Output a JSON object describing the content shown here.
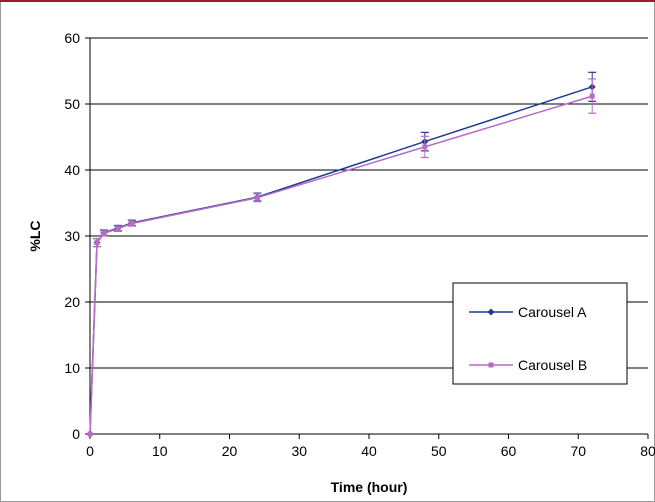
{
  "chart_data": {
    "type": "line",
    "title": "",
    "xlabel": "Time (hour)",
    "ylabel": "%LC",
    "xlim": [
      0,
      80
    ],
    "ylim": [
      0,
      60
    ],
    "x_ticks": [
      "0",
      "10",
      "20",
      "30",
      "40",
      "50",
      "60",
      "70",
      "80"
    ],
    "y_ticks": [
      "0",
      "10",
      "20",
      "30",
      "40",
      "50",
      "60"
    ],
    "grid": "horizontal",
    "legend_position": "bottom-right",
    "series": [
      {
        "name": "Carousel A",
        "color": "#1f3a93",
        "marker": "diamond",
        "points": [
          {
            "x": 0,
            "y": 0,
            "err": 0
          },
          {
            "x": 1,
            "y": 29.0,
            "err": 0.6
          },
          {
            "x": 2,
            "y": 30.5,
            "err": 0.4
          },
          {
            "x": 4,
            "y": 31.2,
            "err": 0.4
          },
          {
            "x": 6,
            "y": 32.0,
            "err": 0.4
          },
          {
            "x": 24,
            "y": 35.9,
            "err": 0.6
          },
          {
            "x": 48,
            "y": 44.3,
            "err": 1.4
          },
          {
            "x": 72,
            "y": 52.6,
            "err": 2.2
          }
        ]
      },
      {
        "name": "Carousel B",
        "color": "#b86ac4",
        "marker": "square",
        "points": [
          {
            "x": 0,
            "y": 0,
            "err": 0
          },
          {
            "x": 1,
            "y": 29.0,
            "err": 0.6
          },
          {
            "x": 2,
            "y": 30.4,
            "err": 0.4
          },
          {
            "x": 4,
            "y": 31.1,
            "err": 0.4
          },
          {
            "x": 6,
            "y": 31.9,
            "err": 0.4
          },
          {
            "x": 24,
            "y": 35.8,
            "err": 0.6
          },
          {
            "x": 48,
            "y": 43.5,
            "err": 1.6
          },
          {
            "x": 72,
            "y": 51.2,
            "err": 2.6
          }
        ]
      }
    ]
  }
}
